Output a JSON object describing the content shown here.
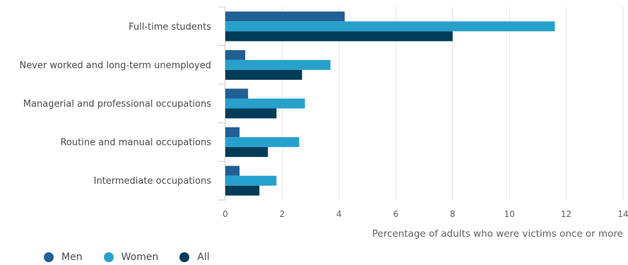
{
  "chart_data": {
    "type": "bar",
    "orientation": "horizontal",
    "categories": [
      "Full-time students",
      "Never worked and long-term unemployed",
      "Managerial and professional occupations",
      "Routine and manual occupations",
      "Intermediate occupations"
    ],
    "series": [
      {
        "name": "Men",
        "color": "#206095",
        "values": [
          4.2,
          0.7,
          0.8,
          0.5,
          0.5
        ]
      },
      {
        "name": "Women",
        "color": "#27a0cc",
        "values": [
          11.6,
          3.7,
          2.8,
          2.6,
          1.8
        ]
      },
      {
        "name": "All",
        "color": "#003c57",
        "values": [
          8.0,
          2.7,
          1.8,
          1.5,
          1.2
        ]
      }
    ],
    "xlabel": "Percentage of adults who were victims once or more",
    "xlim": [
      0,
      14
    ],
    "xticks": [
      0,
      2,
      4,
      6,
      8,
      10,
      12,
      14
    ],
    "grid": true,
    "legend_position": "bottom-left"
  }
}
